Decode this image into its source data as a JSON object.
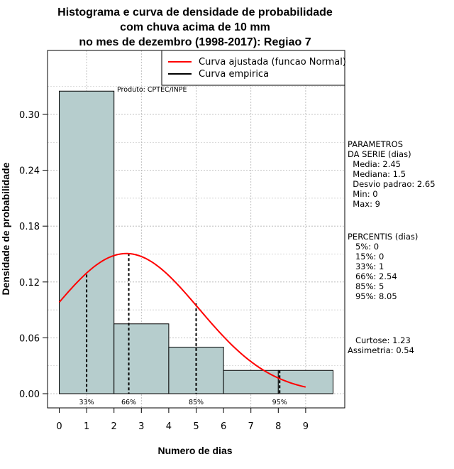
{
  "chart_data": {
    "type": "bar",
    "title_lines": [
      "Histograma e curva de densidade de probabilidade",
      "com chuva acima de 10 mm",
      "no mes de dezembro (1998-2017): Regiao 7"
    ],
    "xlabel": "Numero de dias",
    "ylabel": "Densidade de probabilidade",
    "xlim": [
      0,
      10
    ],
    "ylim": [
      0,
      0.36
    ],
    "x_ticks": [
      "0",
      "1",
      "2",
      "3",
      "4",
      "5",
      "6",
      "7",
      "8",
      "9"
    ],
    "y_ticks": [
      "0.00",
      "0.06",
      "0.12",
      "0.18",
      "0.24",
      "0.30"
    ],
    "bins": [
      {
        "from": 0,
        "to": 2,
        "density": 0.325
      },
      {
        "from": 2,
        "to": 4,
        "density": 0.075
      },
      {
        "from": 4,
        "to": 6,
        "density": 0.05
      },
      {
        "from": 6,
        "to": 8,
        "density": 0.025
      },
      {
        "from": 8,
        "to": 10,
        "density": 0.025
      }
    ],
    "normal_fit": {
      "name": "Curva ajustada (funcao Normal)",
      "mean": 2.45,
      "sd": 2.65,
      "x_from": 0,
      "x_to": 9,
      "color": "#ff0000"
    },
    "empirical": {
      "name": "Curva empirica",
      "color": "#000000"
    },
    "percentile_lines": [
      {
        "label": "33%",
        "x": 1,
        "y": 0.128
      },
      {
        "label": "66%",
        "x": 2.54,
        "y": 0.151
      },
      {
        "label": "85%",
        "x": 5,
        "y": 0.097
      },
      {
        "label": "95%",
        "x": 8.05,
        "y": 0.025
      }
    ],
    "product_label": "Produto: CPTEC/INPE",
    "bar_color": "#b6cdcd"
  },
  "stats": {
    "params_lines": [
      "PARAMETROS",
      "DA SERIE (dias)",
      "  Media: 2.45",
      "  Mediana: 1.5",
      "  Desvio padrao: 2.65",
      "  Min: 0",
      "  Max: 9"
    ],
    "percentis_lines": [
      "PERCENTIS (dias)",
      "   5%: 0",
      "   15%: 0",
      "   33%: 1",
      "   66%: 2.54",
      "   85%: 5",
      "   95%: 8.05"
    ],
    "shape_lines": [
      "   Curtose: 1.23",
      "Assimetria: 0.54"
    ]
  }
}
